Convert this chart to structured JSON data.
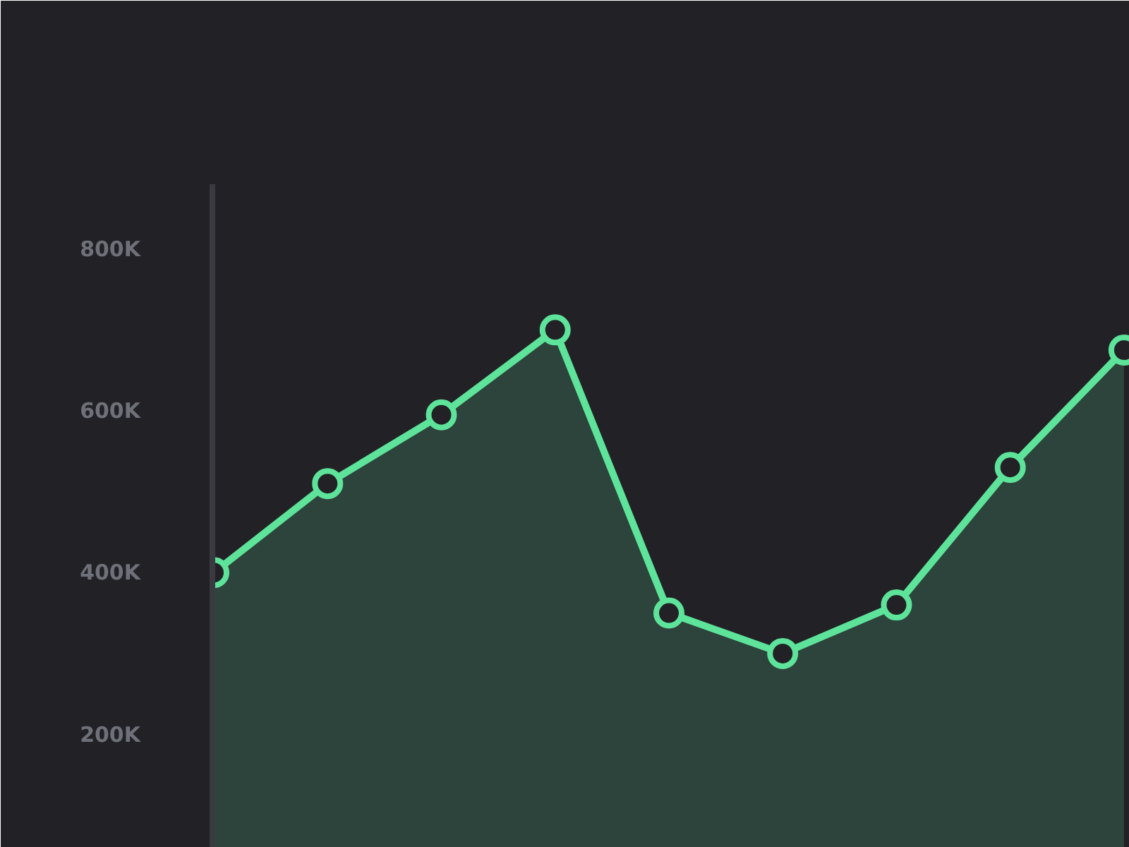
{
  "chart_data": {
    "type": "area",
    "categories": [
      null,
      null,
      null,
      null,
      null,
      null,
      null,
      null,
      null
    ],
    "series": [
      {
        "color": "#5ee39a",
        "values": [
          400000,
          510000,
          595000,
          700000,
          350000,
          300000,
          360000,
          530000,
          675000
        ]
      }
    ],
    "ylim": [
      60000,
      880000
    ],
    "yticks": [
      {
        "value": 200000,
        "label": "200K"
      },
      {
        "value": 400000,
        "label": "400K"
      },
      {
        "value": 600000,
        "label": "600K"
      },
      {
        "value": 800000,
        "label": "800K"
      }
    ],
    "tick_labels": "y",
    "grid": false,
    "marker": "circle",
    "line_style": "solid"
  }
}
